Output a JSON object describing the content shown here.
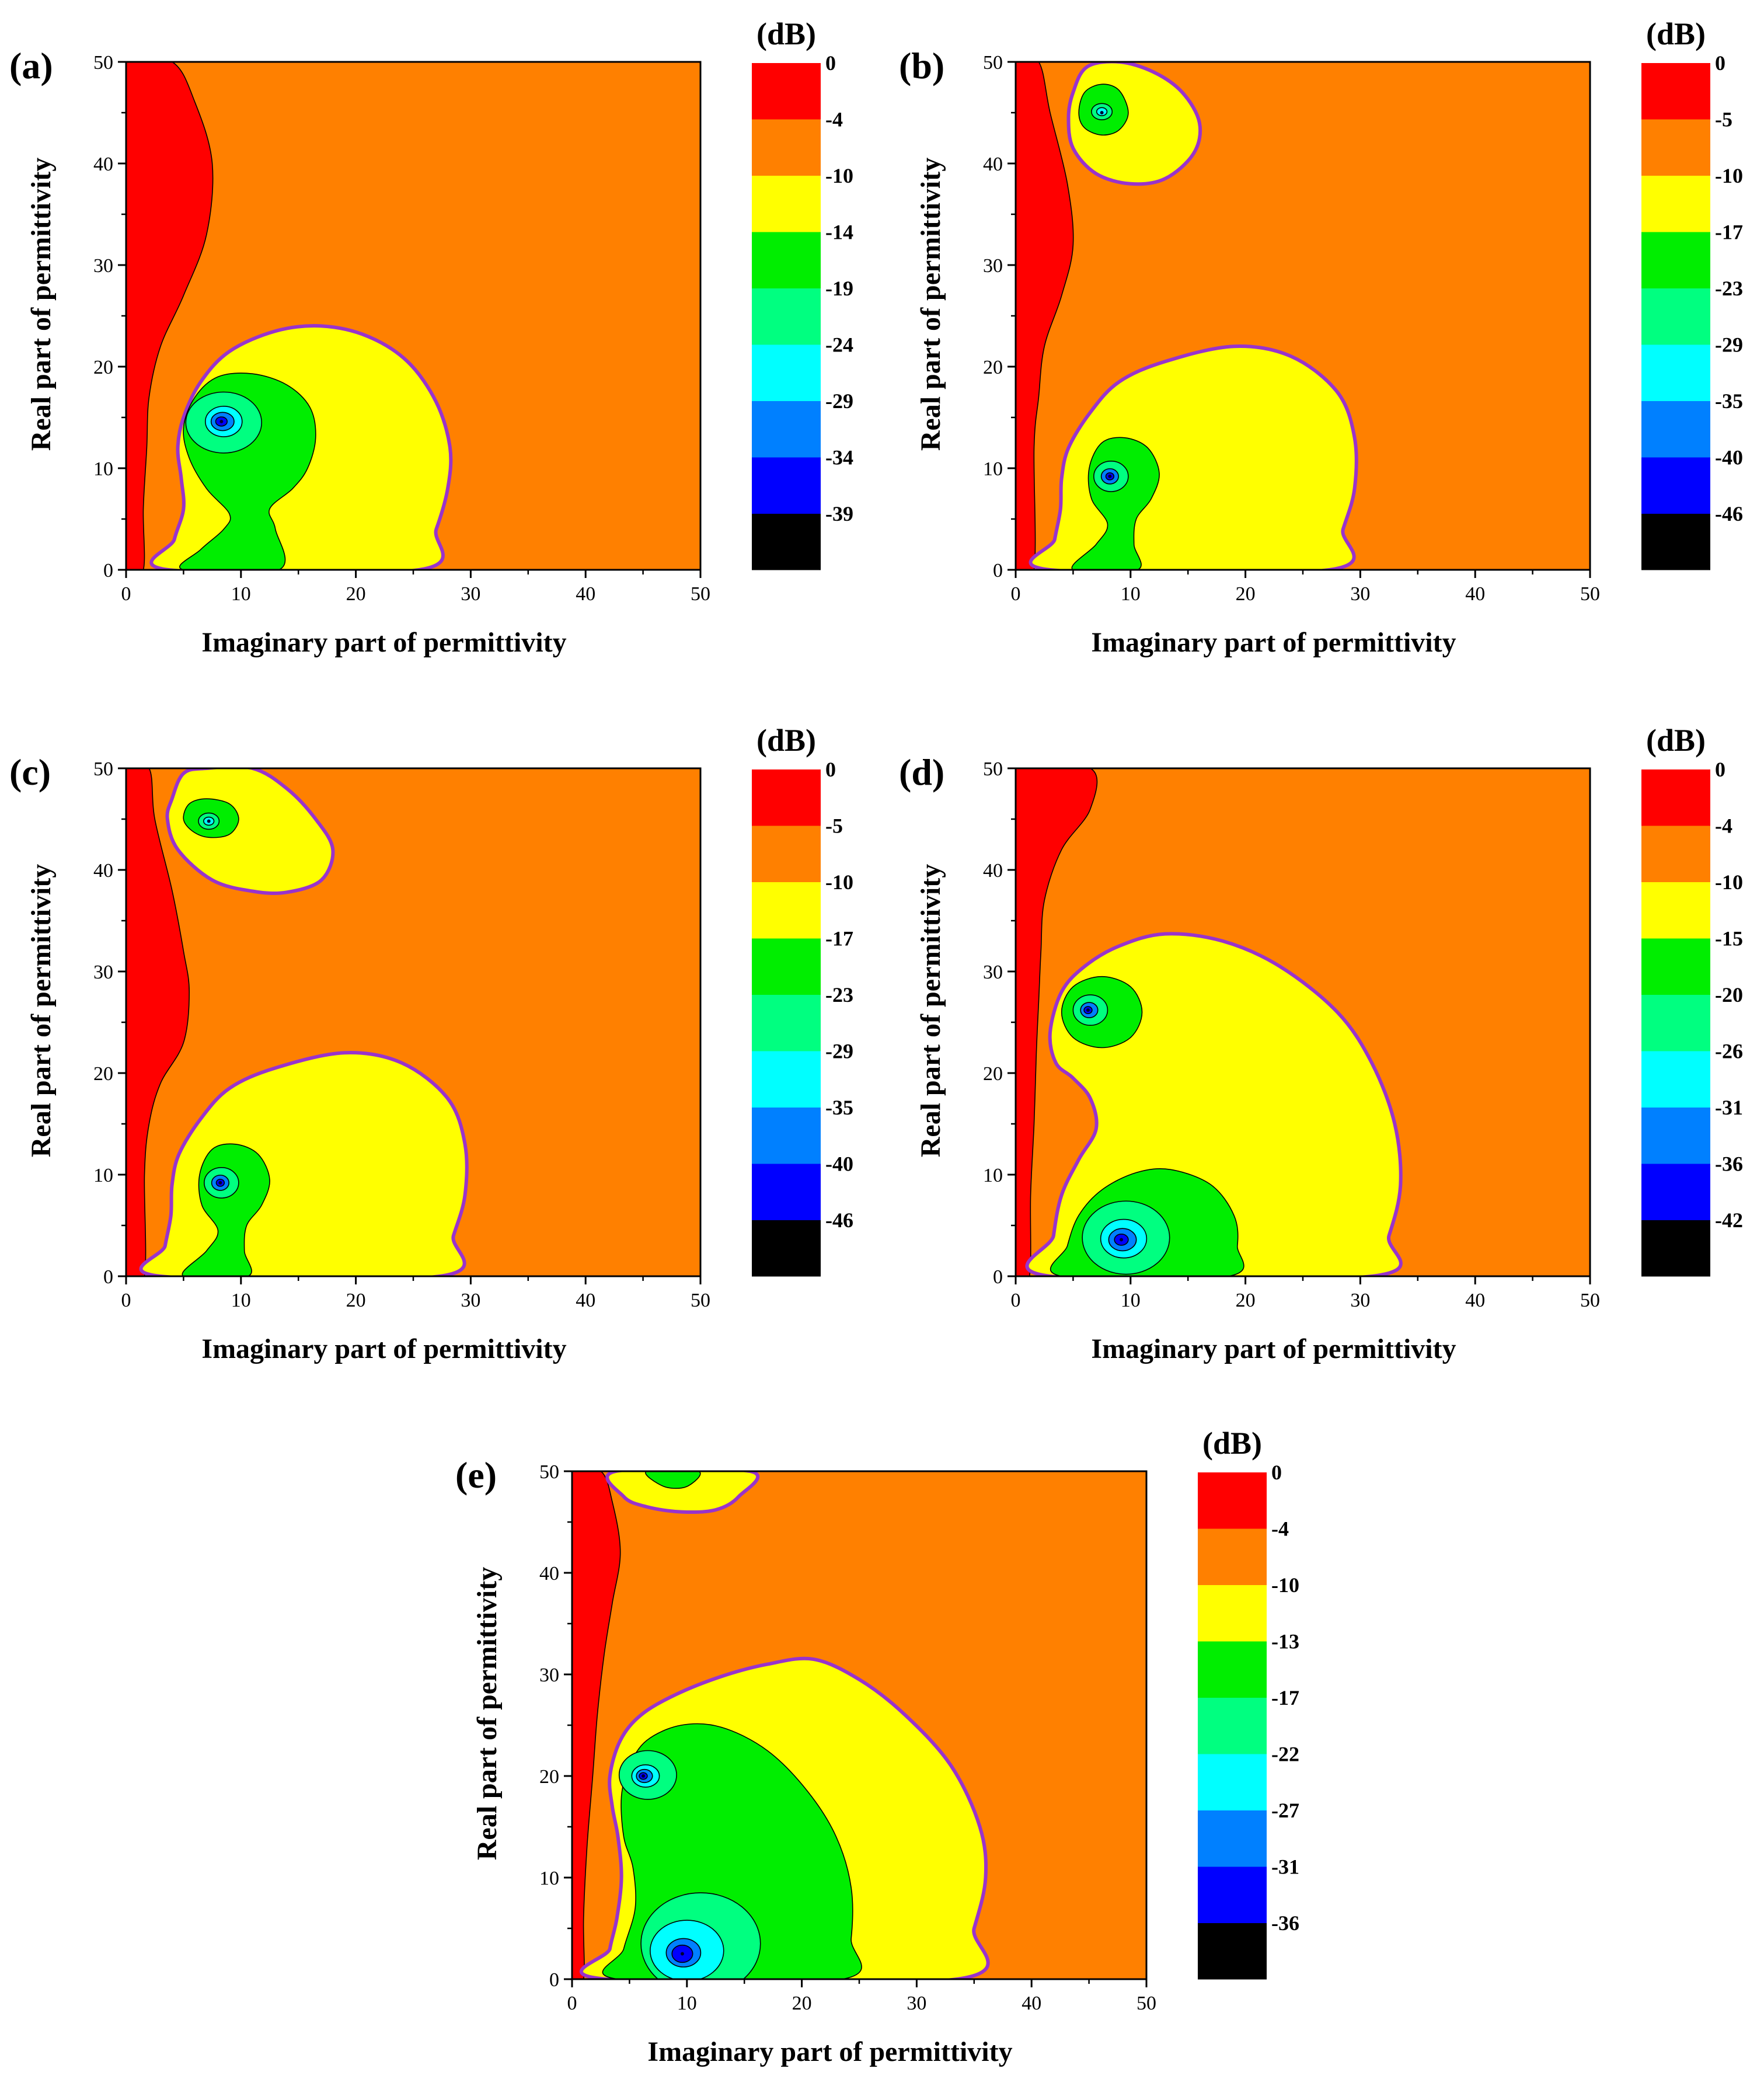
{
  "chart_data": [
    {
      "type": "contour",
      "panel": "(a)",
      "xlabel": "Imaginary part of permittivity",
      "ylabel": "Real part of permittivity",
      "xlim": [
        0,
        50
      ],
      "ylim": [
        0,
        50
      ],
      "xticks": [
        "0",
        "10",
        "20",
        "30",
        "40",
        "50"
      ],
      "yticks": [
        "0",
        "10",
        "20",
        "30",
        "40",
        "50"
      ],
      "colorbar_unit": "(dB)",
      "colorbar_levels": [
        "0",
        "-4",
        "-10",
        "-14",
        "-19",
        "-24",
        "-29",
        "-34",
        "-39"
      ],
      "minima": [
        {
          "x": 8.3,
          "y": 14.6
        }
      ],
      "boundary": "-10 dB contour highlighted in purple"
    },
    {
      "type": "contour",
      "panel": "(b)",
      "xlabel": "Imaginary part of permittivity",
      "ylabel": "Real part of permittivity",
      "xlim": [
        0,
        50
      ],
      "ylim": [
        0,
        50
      ],
      "xticks": [
        "0",
        "10",
        "20",
        "30",
        "40",
        "50"
      ],
      "yticks": [
        "0",
        "10",
        "20",
        "30",
        "40",
        "50"
      ],
      "colorbar_unit": "(dB)",
      "colorbar_levels": [
        "0",
        "-5",
        "-10",
        "-17",
        "-23",
        "-29",
        "-35",
        "-40",
        "-46"
      ],
      "minima": [
        {
          "x": 7.5,
          "y": 45.0
        },
        {
          "x": 8.2,
          "y": 9.2
        }
      ],
      "boundary": "-10 dB contour highlighted in purple"
    },
    {
      "type": "contour",
      "panel": "(c)",
      "xlabel": "Imaginary part of permittivity",
      "ylabel": "Real part of permittivity",
      "xlim": [
        0,
        50
      ],
      "ylim": [
        0,
        50
      ],
      "xticks": [
        "0",
        "10",
        "20",
        "30",
        "40",
        "50"
      ],
      "yticks": [
        "0",
        "10",
        "20",
        "30",
        "40",
        "50"
      ],
      "colorbar_unit": "(dB)",
      "colorbar_levels": [
        "0",
        "-5",
        "-10",
        "-17",
        "-23",
        "-29",
        "-35",
        "-40",
        "-46"
      ],
      "minima": [
        {
          "x": 7.2,
          "y": 44.8
        },
        {
          "x": 8.2,
          "y": 9.2
        }
      ],
      "boundary": "-10 dB contour highlighted in purple"
    },
    {
      "type": "contour",
      "panel": "(d)",
      "xlabel": "Imaginary part of permittivity",
      "ylabel": "Real part of permittivity",
      "xlim": [
        0,
        50
      ],
      "ylim": [
        0,
        50
      ],
      "xticks": [
        "0",
        "10",
        "20",
        "30",
        "40",
        "50"
      ],
      "yticks": [
        "0",
        "10",
        "20",
        "30",
        "40",
        "50"
      ],
      "colorbar_unit": "(dB)",
      "colorbar_levels": [
        "0",
        "-4",
        "-10",
        "-15",
        "-20",
        "-26",
        "-31",
        "-36",
        "-42"
      ],
      "minima": [
        {
          "x": 6.3,
          "y": 26.2
        },
        {
          "x": 9.2,
          "y": 3.6
        }
      ],
      "boundary": "-10 dB contour highlighted in purple"
    },
    {
      "type": "contour",
      "panel": "(e)",
      "xlabel": "Imaginary part of permittivity",
      "ylabel": "Real part of permittivity",
      "xlim": [
        0,
        50
      ],
      "ylim": [
        0,
        50
      ],
      "xticks": [
        "0",
        "10",
        "20",
        "30",
        "40",
        "50"
      ],
      "yticks": [
        "0",
        "10",
        "20",
        "30",
        "40",
        "50"
      ],
      "colorbar_unit": "(dB)",
      "colorbar_levels": [
        "0",
        "-4",
        "-10",
        "-13",
        "-17",
        "-22",
        "-27",
        "-31",
        "-36"
      ],
      "minima": [
        {
          "x": 6.2,
          "y": 20.0
        },
        {
          "x": 9.6,
          "y": 2.5
        }
      ],
      "boundary": "-10 dB contour highlighted in purple"
    }
  ],
  "colors": {
    "level_fills": [
      "#ff0000",
      "#ff8000",
      "#ffff00",
      "#00ee00",
      "#00ff80",
      "#00ffff",
      "#0080ff",
      "#0000ff",
      "#000000"
    ],
    "boundary": "#9933cc",
    "contour_line": "#000000"
  }
}
